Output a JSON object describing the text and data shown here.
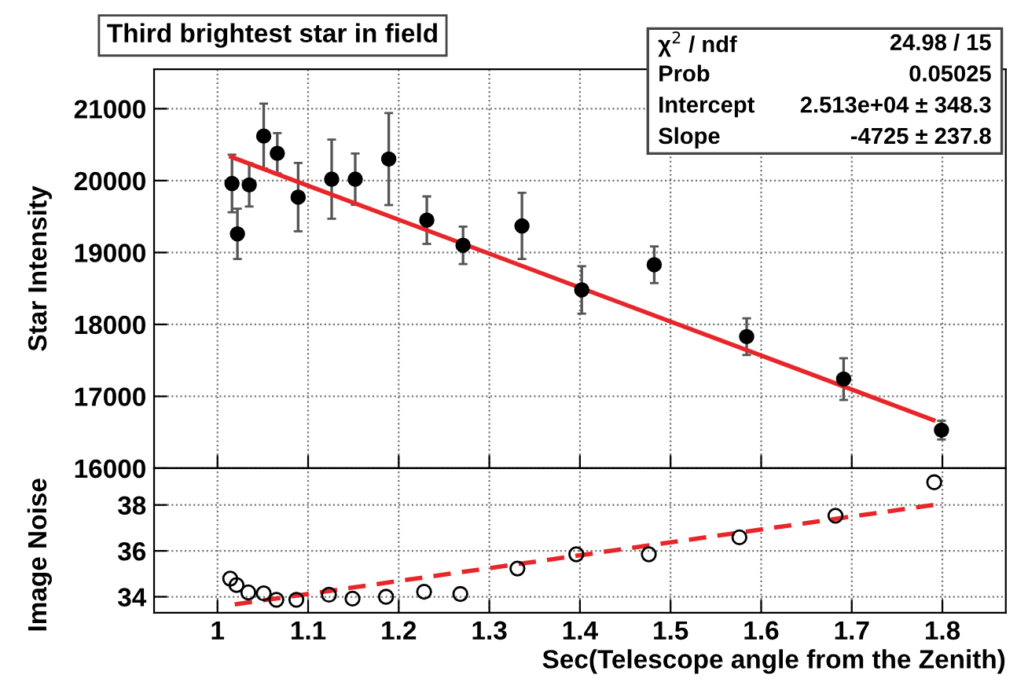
{
  "chart_data": [
    {
      "type": "scatter",
      "title": "Third brightest star in field",
      "ylabel": "Star Intensity",
      "xlim": [
        0.93,
        1.87
      ],
      "xticks": [
        1,
        1.1,
        1.2,
        1.3,
        1.4,
        1.5,
        1.6,
        1.7,
        1.8
      ],
      "ylim": [
        16000,
        21550
      ],
      "yticks": [
        16000,
        17000,
        18000,
        19000,
        20000,
        21000
      ],
      "tick_labels": "y",
      "grid": true,
      "marker": "circle",
      "series": [
        {
          "color": "#000000",
          "x": [
            1.016,
            1.022,
            1.035,
            1.051,
            1.066,
            1.089,
            1.126,
            1.152,
            1.189,
            1.231,
            1.271,
            1.336,
            1.402,
            1.482,
            1.584,
            1.691,
            1.799
          ],
          "values": [
            19960,
            19260,
            19940,
            20620,
            20380,
            19770,
            20020,
            20020,
            20300,
            19450,
            19100,
            19370,
            18480,
            18830,
            17830,
            17240,
            16530
          ],
          "errors": [
            400,
            350,
            300,
            450,
            280,
            475,
            550,
            357,
            640,
            330,
            260,
            460,
            330,
            255,
            255,
            290,
            130
          ]
        },
        {
          "type": "line",
          "marker": "none",
          "color": "#e8262a",
          "line_style": "solid",
          "x": [
            1.015,
            1.79
          ],
          "values": [
            20330,
            16670
          ]
        }
      ],
      "annotations": [
        "χ$^{2}$ / ndf",
        "24.98 / 15",
        "Prob",
        "0.05025",
        "Intercept",
        "2.513e+04 ± 348.3",
        "Slope",
        "-4725 ± 237.8"
      ]
    },
    {
      "type": "scatter",
      "xlabel": "Sec(Telescope angle from the Zenith)",
      "ylabel": "Image Noise",
      "xlim": [
        0.93,
        1.87
      ],
      "xticks": [
        1,
        1.1,
        1.2,
        1.3,
        1.4,
        1.5,
        1.6,
        1.7,
        1.8
      ],
      "ylim": [
        33.3,
        39.6
      ],
      "yticks": [
        34,
        36,
        38
      ],
      "grid": true,
      "marker": "circle",
      "series": [
        {
          "color": "#000000",
          "x": [
            1.014,
            1.021,
            1.034,
            1.051,
            1.065,
            1.087,
            1.123,
            1.149,
            1.186,
            1.228,
            1.268,
            1.331,
            1.396,
            1.476,
            1.576,
            1.682,
            1.791
          ],
          "values": [
            34.79,
            34.51,
            34.19,
            34.15,
            33.87,
            33.87,
            34.09,
            33.92,
            34.0,
            34.22,
            34.12,
            35.23,
            35.85,
            35.85,
            36.59,
            37.53,
            38.99
          ]
        },
        {
          "type": "line",
          "marker": "none",
          "color": "#e8262a",
          "line_style": "dashed",
          "x": [
            1.019,
            1.79
          ],
          "values": [
            33.67,
            38.0
          ]
        }
      ]
    }
  ]
}
